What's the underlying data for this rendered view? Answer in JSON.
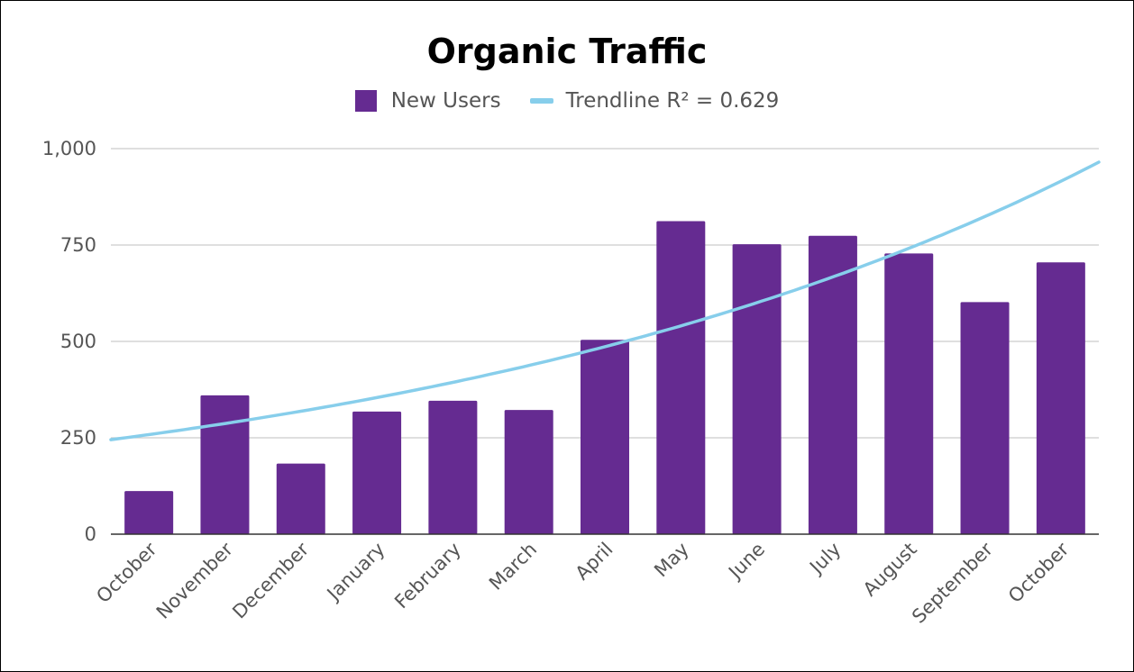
{
  "chart_data": {
    "type": "bar",
    "title": "Organic Traffic",
    "categories": [
      "October",
      "November",
      "December",
      "January",
      "February",
      "March",
      "April",
      "May",
      "June",
      "July",
      "August",
      "September",
      "October"
    ],
    "series": [
      {
        "name": "New Users",
        "color": "#652b91",
        "values": [
          112,
          360,
          183,
          318,
          346,
          322,
          504,
          812,
          752,
          774,
          728,
          602,
          705
        ]
      }
    ],
    "trendline": {
      "label": "Trendline R² = 0.629",
      "type": "exponential",
      "color": "#87ceeb",
      "start_value": 245,
      "end_value": 965
    },
    "xlabel": "",
    "ylabel": "",
    "ylim": [
      0,
      1000
    ],
    "yticks": [
      0,
      250,
      500,
      750,
      1000
    ],
    "ytick_labels": [
      "0",
      "250",
      "500",
      "750",
      "1,000"
    ],
    "grid": true,
    "legend_position": "top"
  }
}
